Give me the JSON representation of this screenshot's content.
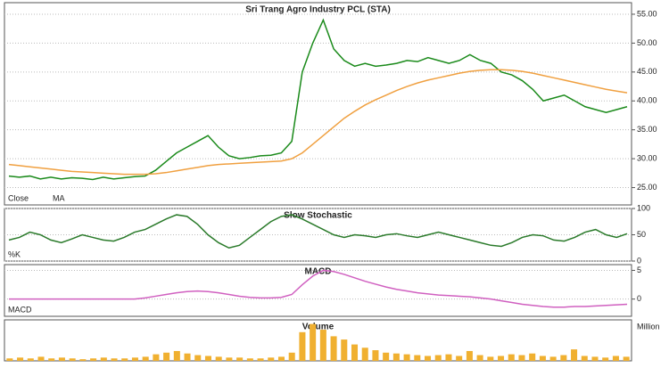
{
  "chart_data": [
    {
      "type": "line",
      "title": "Sri Trang Agro Industry PCL (STA)",
      "ylim": [
        22,
        57
      ],
      "yticks": [
        {
          "value": 25,
          "label": "25.00"
        },
        {
          "value": 30,
          "label": "30.00"
        },
        {
          "value": 35,
          "label": "35.00"
        },
        {
          "value": 40,
          "label": "40.00"
        },
        {
          "value": 45,
          "label": "45.00"
        },
        {
          "value": 50,
          "label": "50.00"
        },
        {
          "value": 55,
          "label": "55.00"
        }
      ],
      "grid": true,
      "series": [
        {
          "name": "Close",
          "color": "#1a8a1a",
          "values": [
            27,
            26.8,
            27,
            26.5,
            26.8,
            26.5,
            26.7,
            26.6,
            26.4,
            26.8,
            26.5,
            26.7,
            26.9,
            27,
            28,
            29.5,
            31,
            32,
            33,
            34,
            32,
            30.5,
            30,
            30.2,
            30.5,
            30.6,
            31,
            33,
            45,
            50,
            54,
            49,
            47,
            46,
            46.5,
            46,
            46.2,
            46.5,
            47,
            46.8,
            47.5,
            47,
            46.5,
            47,
            48,
            47,
            46.5,
            45,
            44.5,
            43.5,
            42,
            40,
            40.5,
            41,
            40,
            39,
            38.5,
            38,
            38.5,
            39
          ]
        },
        {
          "name": "MA",
          "color": "#f0a040",
          "values": [
            29,
            28.8,
            28.6,
            28.4,
            28.2,
            28,
            27.8,
            27.7,
            27.6,
            27.5,
            27.4,
            27.3,
            27.3,
            27.3,
            27.4,
            27.6,
            27.9,
            28.2,
            28.5,
            28.8,
            29,
            29.1,
            29.2,
            29.3,
            29.4,
            29.5,
            29.6,
            30,
            31,
            32.5,
            34,
            35.5,
            37,
            38.2,
            39.3,
            40.2,
            41,
            41.8,
            42.5,
            43.1,
            43.6,
            44,
            44.4,
            44.8,
            45.1,
            45.3,
            45.4,
            45.4,
            45.3,
            45.1,
            44.8,
            44.4,
            44,
            43.6,
            43.2,
            42.8,
            42.4,
            42,
            41.7,
            41.4
          ]
        }
      ]
    },
    {
      "type": "line",
      "title": "Slow Stochastic",
      "ylim": [
        0,
        100
      ],
      "yticks": [
        0,
        50,
        100
      ],
      "grid": true,
      "series": [
        {
          "name": "%K",
          "color": "#2a7a2a",
          "values": [
            40,
            45,
            55,
            50,
            40,
            35,
            42,
            50,
            45,
            40,
            38,
            45,
            55,
            60,
            70,
            80,
            88,
            85,
            70,
            50,
            35,
            25,
            30,
            45,
            60,
            75,
            85,
            88,
            80,
            70,
            60,
            50,
            45,
            50,
            48,
            45,
            50,
            52,
            48,
            45,
            50,
            55,
            50,
            45,
            40,
            35,
            30,
            28,
            35,
            45,
            50,
            48,
            40,
            38,
            45,
            55,
            60,
            50,
            45,
            52
          ]
        }
      ]
    },
    {
      "type": "line",
      "title": "MACD",
      "ylim": [
        -3,
        6
      ],
      "yticks": [
        0,
        5
      ],
      "grid": true,
      "series": [
        {
          "name": "MACD",
          "color": "#d060c0",
          "values": [
            0,
            0,
            0,
            0,
            0,
            0,
            0,
            0,
            0,
            0,
            0,
            0,
            0,
            0.2,
            0.5,
            0.8,
            1.1,
            1.3,
            1.4,
            1.3,
            1.1,
            0.8,
            0.5,
            0.3,
            0.2,
            0.2,
            0.3,
            0.8,
            2.5,
            4,
            5,
            4.8,
            4.3,
            3.7,
            3.1,
            2.6,
            2.1,
            1.7,
            1.4,
            1.1,
            0.9,
            0.7,
            0.6,
            0.5,
            0.4,
            0.2,
            0,
            -0.3,
            -0.6,
            -0.9,
            -1.1,
            -1.3,
            -1.4,
            -1.4,
            -1.3,
            -1.3,
            -1.2,
            -1.1,
            -1,
            -0.9
          ]
        }
      ]
    },
    {
      "type": "bar",
      "title": "Volume",
      "y_label": "Million",
      "ylim": [
        0,
        5
      ],
      "color": "#f0b030",
      "values": [
        0.3,
        0.4,
        0.3,
        0.5,
        0.3,
        0.4,
        0.3,
        0.2,
        0.3,
        0.4,
        0.3,
        0.3,
        0.4,
        0.5,
        0.8,
        1,
        1.2,
        0.9,
        0.7,
        0.6,
        0.5,
        0.4,
        0.4,
        0.3,
        0.3,
        0.4,
        0.5,
        1,
        3.5,
        4.5,
        3.8,
        3,
        2.6,
        2,
        1.6,
        1.3,
        1,
        0.9,
        0.8,
        0.7,
        0.6,
        0.7,
        0.8,
        0.6,
        1.2,
        0.7,
        0.5,
        0.6,
        0.8,
        0.7,
        0.9,
        0.6,
        0.5,
        0.7,
        1.4,
        0.6,
        0.5,
        0.4,
        0.6,
        0.5
      ]
    }
  ]
}
